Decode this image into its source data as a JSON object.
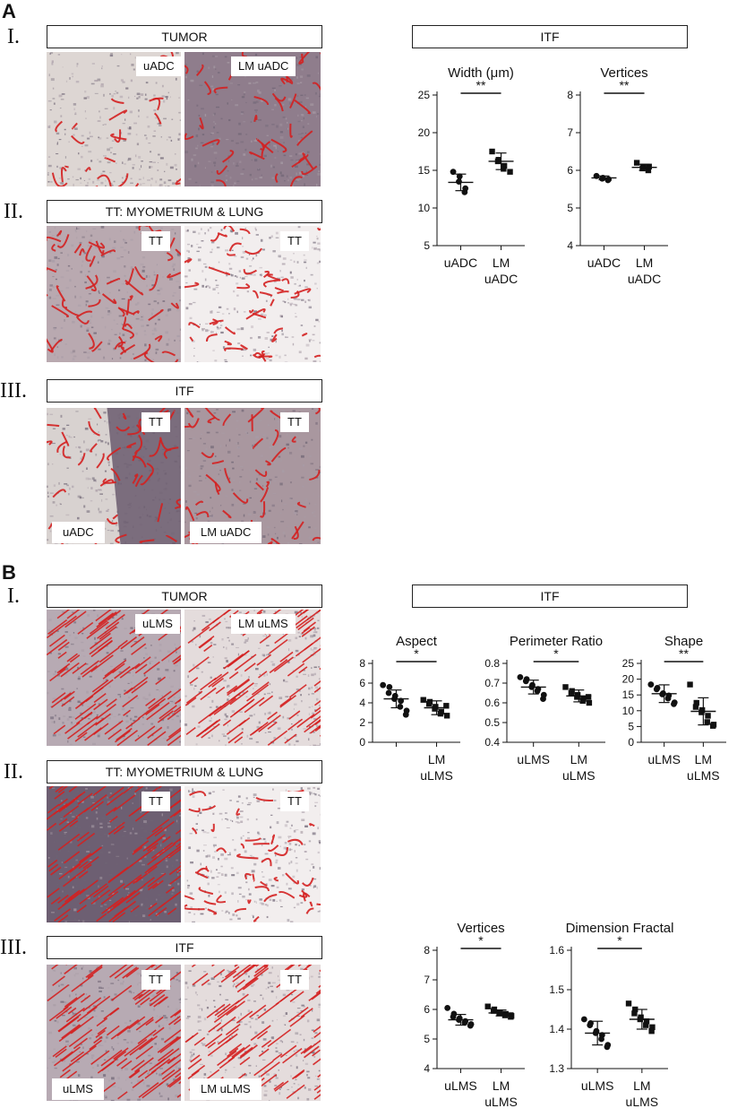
{
  "figure": {
    "panel_a": {
      "letter": "A",
      "rows": [
        {
          "roman": "I.",
          "header": "TUMOR",
          "tags": [
            "uADC",
            "LM uADC"
          ]
        },
        {
          "roman": "II.",
          "header": "TT: MYOMETRIUM & LUNG",
          "tags": [
            "TT",
            "TT"
          ]
        },
        {
          "roman": "III.",
          "header": "ITF",
          "tags": [
            "TT",
            "TT",
            "uADC",
            "LM uADC"
          ]
        }
      ],
      "itf_header": "ITF"
    },
    "panel_b": {
      "letter": "B",
      "rows": [
        {
          "roman": "I.",
          "header": "TUMOR",
          "tags": [
            "uLMS",
            "LM uLMS"
          ]
        },
        {
          "roman": "II.",
          "header": "TT: MYOMETRIUM & LUNG",
          "tags": [
            "TT",
            "TT"
          ]
        },
        {
          "roman": "III.",
          "header": "ITF",
          "tags": [
            "TT",
            "TT",
            "uLMS",
            "LM uLMS"
          ]
        }
      ],
      "itf_header": "ITF"
    },
    "colors": {
      "stain_red": "#d42020",
      "tissue_bg": "#d9d3d3",
      "tissue_dark": "#7a6c80",
      "lung_bg": "#f2eeee"
    }
  },
  "chart_data": [
    {
      "type": "scatter",
      "title": "Width (μm)",
      "ylim": [
        5,
        25
      ],
      "yticks": [
        "5",
        "10",
        "15",
        "20",
        "25"
      ],
      "categories": [
        [
          "uADC"
        ],
        [
          "LM",
          "uADC"
        ]
      ],
      "significance": "**",
      "series": [
        {
          "values": [
            14.8,
            14.2,
            13.5,
            12.6,
            12.1
          ],
          "mean": 13.4,
          "sd": 1.1,
          "marker": "circle"
        },
        {
          "values": [
            17.5,
            16.4,
            16.2,
            15.6,
            15.2,
            14.8
          ],
          "mean": 16.2,
          "sd": 1.1,
          "marker": "square"
        }
      ]
    },
    {
      "type": "scatter",
      "title": "Vertices",
      "ylim": [
        4,
        8
      ],
      "yticks": [
        "4",
        "5",
        "6",
        "7",
        "8"
      ],
      "categories": [
        [
          "uADC"
        ],
        [
          "LM",
          "uADC"
        ]
      ],
      "significance": "**",
      "series": [
        {
          "values": [
            5.85,
            5.8,
            5.78,
            5.76,
            5.74
          ],
          "mean": 5.8,
          "sd": 0.05,
          "marker": "circle"
        },
        {
          "values": [
            6.2,
            6.1,
            6.05,
            6.1,
            6.0
          ],
          "mean": 6.08,
          "sd": 0.08,
          "marker": "square"
        }
      ]
    },
    {
      "type": "scatter",
      "title": "Aspect",
      "ylim": [
        0,
        8
      ],
      "yticks": [
        "0",
        "2",
        "4",
        "6",
        "8"
      ],
      "categories": [
        [
          ""
        ],
        [
          "LM",
          "uLMS"
        ]
      ],
      "significance": "*",
      "series": [
        {
          "values": [
            5.8,
            5.6,
            5.0,
            4.7,
            4.4,
            4.2,
            3.6,
            3.2,
            2.8
          ],
          "mean": 4.4,
          "sd": 0.9,
          "marker": "circle"
        },
        {
          "values": [
            4.3,
            4.1,
            3.9,
            3.6,
            3.4,
            3.1,
            2.9,
            2.7,
            3.7
          ],
          "mean": 3.5,
          "sd": 0.7,
          "marker": "square"
        }
      ]
    },
    {
      "type": "scatter",
      "title": "Perimeter Ratio",
      "ylim": [
        0.4,
        0.8
      ],
      "yticks": [
        "0.4",
        "0.5",
        "0.6",
        "0.7",
        "0.8"
      ],
      "categories": [
        [
          "uLMS"
        ],
        [
          "LM",
          "uLMS"
        ]
      ],
      "significance": "*",
      "series": [
        {
          "values": [
            0.73,
            0.72,
            0.71,
            0.69,
            0.68,
            0.67,
            0.66,
            0.64,
            0.62
          ],
          "mean": 0.68,
          "sd": 0.035,
          "marker": "circle"
        },
        {
          "values": [
            0.68,
            0.66,
            0.65,
            0.64,
            0.63,
            0.62,
            0.61,
            0.6,
            0.63
          ],
          "mean": 0.635,
          "sd": 0.03,
          "marker": "square"
        }
      ]
    },
    {
      "type": "scatter",
      "title": "Shape",
      "ylim": [
        0,
        25
      ],
      "yticks": [
        "0",
        "5",
        "10",
        "15",
        "20",
        "25"
      ],
      "categories": [
        [
          "uLMS"
        ],
        [
          "LM",
          "uLMS"
        ]
      ],
      "significance": "**",
      "series": [
        {
          "values": [
            18.3,
            17.2,
            16.8,
            15.5,
            15.2,
            14.8,
            13.9,
            12.6,
            12.1
          ],
          "mean": 15.4,
          "sd": 2.8,
          "marker": "circle"
        },
        {
          "values": [
            18.3,
            12.5,
            11.2,
            10.2,
            9.5,
            8.4,
            6.4,
            5.6,
            5.2
          ],
          "mean": 9.8,
          "sd": 4.3,
          "marker": "square"
        }
      ]
    },
    {
      "type": "scatter",
      "title": "Vertices",
      "ylim": [
        4,
        8
      ],
      "yticks": [
        "4",
        "5",
        "6",
        "7",
        "8"
      ],
      "categories": [
        [
          "uLMS"
        ],
        [
          "LM",
          "uLMS"
        ]
      ],
      "significance": "*",
      "series": [
        {
          "values": [
            6.05,
            5.85,
            5.75,
            5.7,
            5.65,
            5.6,
            5.55,
            5.5,
            5.45
          ],
          "mean": 5.65,
          "sd": 0.18,
          "marker": "circle"
        },
        {
          "values": [
            6.1,
            6.0,
            5.95,
            5.9,
            5.88,
            5.85,
            5.8,
            5.78,
            5.75
          ],
          "mean": 5.88,
          "sd": 0.1,
          "marker": "square"
        }
      ]
    },
    {
      "type": "scatter",
      "title": "Dimension Fractal",
      "ylim": [
        1.3,
        1.6
      ],
      "yticks": [
        "1.3",
        "1.4",
        "1.5",
        "1.6"
      ],
      "categories": [
        [
          "uLMS"
        ],
        [
          "LM",
          "uLMS"
        ]
      ],
      "significance": "*",
      "series": [
        {
          "values": [
            1.425,
            1.415,
            1.41,
            1.395,
            1.39,
            1.385,
            1.375,
            1.36,
            1.355
          ],
          "mean": 1.39,
          "sd": 0.03,
          "marker": "circle"
        },
        {
          "values": [
            1.465,
            1.45,
            1.44,
            1.43,
            1.425,
            1.42,
            1.41,
            1.405,
            1.395
          ],
          "mean": 1.425,
          "sd": 0.025,
          "marker": "square"
        }
      ]
    }
  ]
}
